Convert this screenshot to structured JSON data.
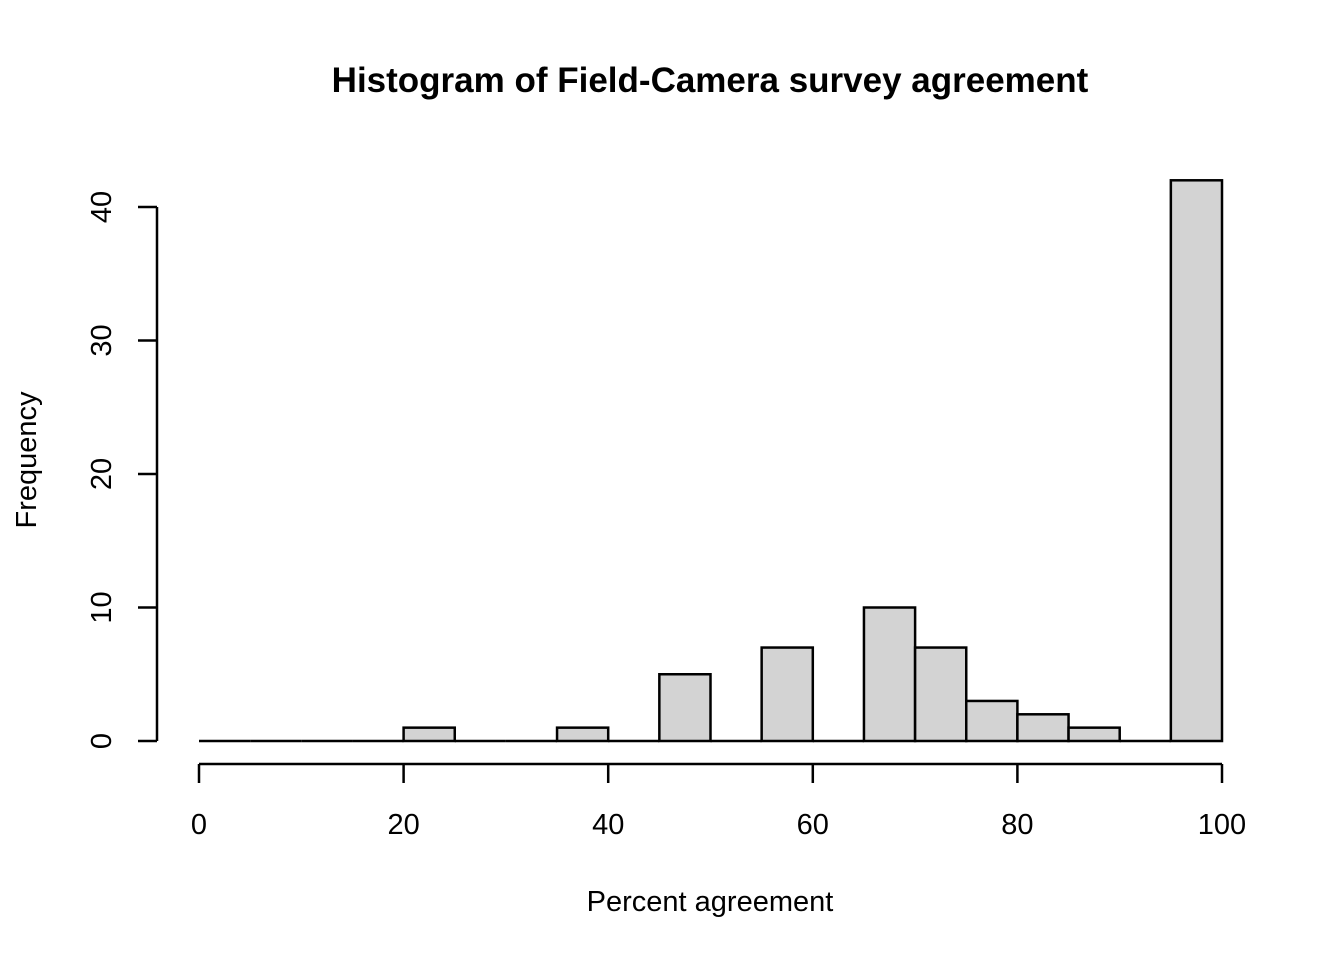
{
  "chart_data": {
    "type": "bar",
    "title": "Histogram of Field-Camera survey agreement",
    "xlabel": "Percent agreement",
    "ylabel": "Frequency",
    "bins": [
      {
        "start": 0,
        "end": 5,
        "count": 0
      },
      {
        "start": 5,
        "end": 10,
        "count": 0
      },
      {
        "start": 10,
        "end": 15,
        "count": 0
      },
      {
        "start": 15,
        "end": 20,
        "count": 0
      },
      {
        "start": 20,
        "end": 25,
        "count": 1
      },
      {
        "start": 25,
        "end": 30,
        "count": 0
      },
      {
        "start": 30,
        "end": 35,
        "count": 0
      },
      {
        "start": 35,
        "end": 40,
        "count": 1
      },
      {
        "start": 40,
        "end": 45,
        "count": 0
      },
      {
        "start": 45,
        "end": 50,
        "count": 5
      },
      {
        "start": 50,
        "end": 55,
        "count": 0
      },
      {
        "start": 55,
        "end": 60,
        "count": 7
      },
      {
        "start": 60,
        "end": 65,
        "count": 0
      },
      {
        "start": 65,
        "end": 70,
        "count": 10
      },
      {
        "start": 70,
        "end": 75,
        "count": 7
      },
      {
        "start": 75,
        "end": 80,
        "count": 3
      },
      {
        "start": 80,
        "end": 85,
        "count": 2
      },
      {
        "start": 85,
        "end": 90,
        "count": 1
      },
      {
        "start": 90,
        "end": 95,
        "count": 0
      },
      {
        "start": 95,
        "end": 100,
        "count": 42
      }
    ],
    "xlim": [
      0,
      100
    ],
    "ylim": [
      0,
      42
    ],
    "x_ticks": [
      "0",
      "20",
      "40",
      "60",
      "80",
      "100"
    ],
    "y_ticks": [
      "0",
      "10",
      "20",
      "30",
      "40"
    ],
    "grid": false,
    "legend": "none",
    "bar_fill": "#d3d3d3",
    "bar_stroke": "#000000"
  }
}
